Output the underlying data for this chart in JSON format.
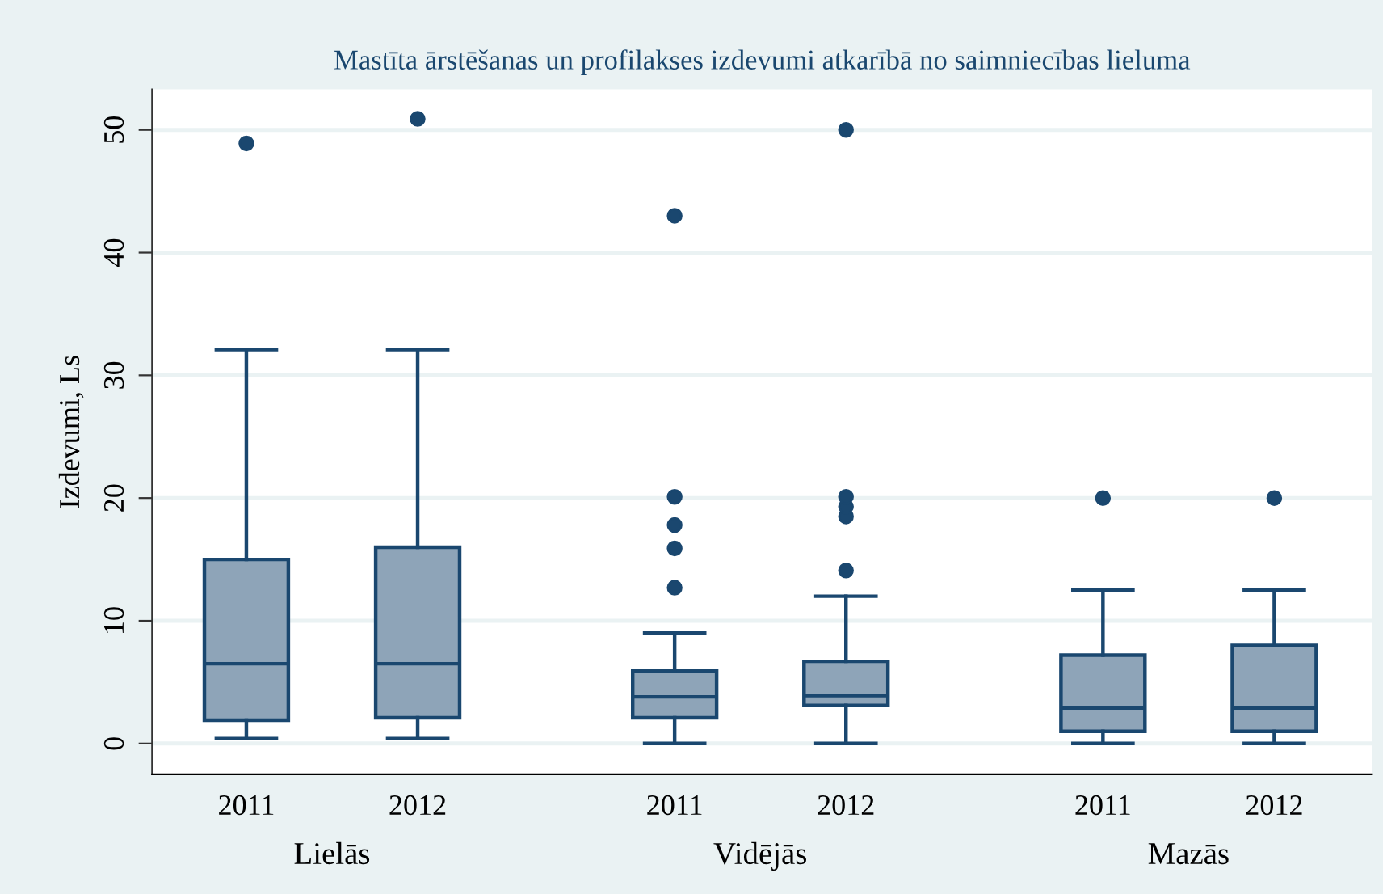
{
  "chart_data": {
    "type": "box",
    "title": "Mastīta ārstēšanas un profilakses izdevumi atkarībā no saimniecības lieluma",
    "ylabel": "Izdevumi, Ls",
    "categories": [
      "2011",
      "2012",
      "2011",
      "2012",
      "2011",
      "2012"
    ],
    "annotations": [
      "Lielās",
      "Vidējās",
      "Mazās"
    ],
    "series": [
      {
        "color": "#8ea4b8",
        "boxes": [
          {
            "low": 0.4,
            "q1": 1.9,
            "median": 6.5,
            "q3": 15,
            "high": 32.1,
            "outliers": [
              48.9
            ]
          },
          {
            "low": 0.4,
            "q1": 2.1,
            "median": 6.5,
            "q3": 16,
            "high": 32.1,
            "outliers": [
              50.9
            ]
          },
          {
            "low": 0,
            "q1": 2.1,
            "median": 3.8,
            "q3": 5.9,
            "high": 9,
            "outliers": [
              12.7,
              15.9,
              17.8,
              20.1,
              43
            ]
          },
          {
            "low": 0,
            "q1": 3.1,
            "median": 3.9,
            "q3": 6.7,
            "high": 12,
            "outliers": [
              14.1,
              18.5,
              19.3,
              20.1,
              50
            ]
          },
          {
            "low": 0,
            "q1": 1,
            "median": 2.9,
            "q3": 7.2,
            "high": 12.5,
            "outliers": [
              20
            ]
          },
          {
            "low": 0,
            "q1": 1,
            "median": 2.9,
            "q3": 8,
            "high": 12.5,
            "outliers": [
              20
            ]
          }
        ]
      }
    ],
    "ylim": [
      -2.5,
      53.3
    ],
    "yticks": [
      0,
      10,
      20,
      30,
      40,
      50
    ],
    "grid": "y"
  }
}
